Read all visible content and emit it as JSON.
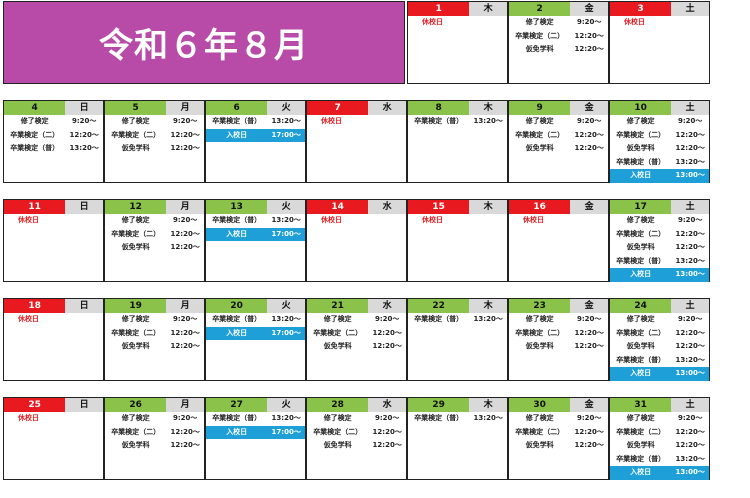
{
  "title": "令和６年８月",
  "colors": {
    "title_bg": "#b84aa8",
    "date_bg": "#8bc34a",
    "holiday_bg": "#e8191f",
    "weekday_bg": "#d9d9d9",
    "highlight_bg": "#1e9fd8"
  },
  "holiday_label": "休校日",
  "weekdays": [
    "日",
    "月",
    "火",
    "水",
    "木",
    "金",
    "土"
  ],
  "events": {
    "shuryo": "修了検定",
    "sotsu2": "卒業検定（二）",
    "karimen": "仮免学科",
    "sotsufu": "卒業検定（普）",
    "nyuko": "入校日",
    "t920": "9:20〜",
    "t1220": "12:20〜",
    "t1320": "13:20〜",
    "t1700": "17:00〜",
    "t1300": "13:00〜"
  },
  "days": [
    {
      "date": "1",
      "dow": "木",
      "holiday": true,
      "events": []
    },
    {
      "date": "2",
      "dow": "金",
      "holiday": false,
      "events": [
        [
          "shuryo",
          "t920"
        ],
        [
          "sotsu2",
          "t1220"
        ],
        [
          "karimen",
          "t1220"
        ]
      ]
    },
    {
      "date": "3",
      "dow": "土",
      "holiday": true,
      "events": []
    },
    {
      "date": "4",
      "dow": "日",
      "holiday": false,
      "events": [
        [
          "shuryo",
          "t920"
        ],
        [
          "sotsu2",
          "t1220"
        ],
        [
          "sotsufu",
          "t1320"
        ]
      ]
    },
    {
      "date": "5",
      "dow": "月",
      "holiday": false,
      "events": [
        [
          "shuryo",
          "t920"
        ],
        [
          "sotsu2",
          "t1220"
        ],
        [
          "karimen",
          "t1220"
        ]
      ]
    },
    {
      "date": "6",
      "dow": "火",
      "holiday": false,
      "events": [
        [
          "sotsufu",
          "t1320"
        ],
        [
          "nyuko",
          "t1700",
          true
        ]
      ]
    },
    {
      "date": "7",
      "dow": "水",
      "holiday": true,
      "events": []
    },
    {
      "date": "8",
      "dow": "木",
      "holiday": false,
      "events": [
        [
          "sotsufu",
          "t1320"
        ]
      ]
    },
    {
      "date": "9",
      "dow": "金",
      "holiday": false,
      "events": [
        [
          "shuryo",
          "t920"
        ],
        [
          "sotsu2",
          "t1220"
        ],
        [
          "karimen",
          "t1220"
        ]
      ]
    },
    {
      "date": "10",
      "dow": "土",
      "holiday": false,
      "events": [
        [
          "shuryo",
          "t920"
        ],
        [
          "sotsu2",
          "t1220"
        ],
        [
          "karimen",
          "t1220"
        ],
        [
          "sotsufu",
          "t1320"
        ],
        [
          "nyuko",
          "t1300",
          true
        ]
      ]
    },
    {
      "date": "11",
      "dow": "日",
      "holiday": true,
      "events": []
    },
    {
      "date": "12",
      "dow": "月",
      "holiday": false,
      "events": [
        [
          "shuryo",
          "t920"
        ],
        [
          "sotsu2",
          "t1220"
        ],
        [
          "karimen",
          "t1220"
        ]
      ]
    },
    {
      "date": "13",
      "dow": "火",
      "holiday": false,
      "events": [
        [
          "sotsufu",
          "t1320"
        ],
        [
          "nyuko",
          "t1700",
          true
        ]
      ]
    },
    {
      "date": "14",
      "dow": "水",
      "holiday": true,
      "events": []
    },
    {
      "date": "15",
      "dow": "木",
      "holiday": true,
      "events": []
    },
    {
      "date": "16",
      "dow": "金",
      "holiday": true,
      "events": []
    },
    {
      "date": "17",
      "dow": "土",
      "holiday": false,
      "events": [
        [
          "shuryo",
          "t920"
        ],
        [
          "sotsu2",
          "t1220"
        ],
        [
          "karimen",
          "t1220"
        ],
        [
          "sotsufu",
          "t1320"
        ],
        [
          "nyuko",
          "t1300",
          true
        ]
      ]
    },
    {
      "date": "18",
      "dow": "日",
      "holiday": true,
      "events": []
    },
    {
      "date": "19",
      "dow": "月",
      "holiday": false,
      "events": [
        [
          "shuryo",
          "t920"
        ],
        [
          "sotsu2",
          "t1220"
        ],
        [
          "karimen",
          "t1220"
        ]
      ]
    },
    {
      "date": "20",
      "dow": "火",
      "holiday": false,
      "events": [
        [
          "sotsufu",
          "t1320"
        ],
        [
          "nyuko",
          "t1700",
          true
        ]
      ]
    },
    {
      "date": "21",
      "dow": "水",
      "holiday": false,
      "events": [
        [
          "shuryo",
          "t920"
        ],
        [
          "sotsu2",
          "t1220"
        ],
        [
          "karimen",
          "t1220"
        ]
      ]
    },
    {
      "date": "22",
      "dow": "木",
      "holiday": false,
      "events": [
        [
          "sotsufu",
          "t1320"
        ]
      ]
    },
    {
      "date": "23",
      "dow": "金",
      "holiday": false,
      "events": [
        [
          "shuryo",
          "t920"
        ],
        [
          "sotsu2",
          "t1220"
        ],
        [
          "karimen",
          "t1220"
        ]
      ]
    },
    {
      "date": "24",
      "dow": "土",
      "holiday": false,
      "events": [
        [
          "shuryo",
          "t920"
        ],
        [
          "sotsu2",
          "t1220"
        ],
        [
          "karimen",
          "t1220"
        ],
        [
          "sotsufu",
          "t1320"
        ],
        [
          "nyuko",
          "t1300",
          true
        ]
      ]
    },
    {
      "date": "25",
      "dow": "日",
      "holiday": true,
      "events": []
    },
    {
      "date": "26",
      "dow": "月",
      "holiday": false,
      "events": [
        [
          "shuryo",
          "t920"
        ],
        [
          "sotsu2",
          "t1220"
        ],
        [
          "karimen",
          "t1220"
        ]
      ]
    },
    {
      "date": "27",
      "dow": "火",
      "holiday": false,
      "events": [
        [
          "sotsufu",
          "t1320"
        ],
        [
          "nyuko",
          "t1700",
          true
        ]
      ]
    },
    {
      "date": "28",
      "dow": "水",
      "holiday": false,
      "events": [
        [
          "shuryo",
          "t920"
        ],
        [
          "sotsu2",
          "t1220"
        ],
        [
          "karimen",
          "t1220"
        ]
      ]
    },
    {
      "date": "29",
      "dow": "木",
      "holiday": false,
      "events": [
        [
          "sotsufu",
          "t1320"
        ]
      ]
    },
    {
      "date": "30",
      "dow": "金",
      "holiday": false,
      "events": [
        [
          "shuryo",
          "t920"
        ],
        [
          "sotsu2",
          "t1220"
        ],
        [
          "karimen",
          "t1220"
        ]
      ]
    },
    {
      "date": "31",
      "dow": "土",
      "holiday": false,
      "events": [
        [
          "shuryo",
          "t920"
        ],
        [
          "sotsu2",
          "t1220"
        ],
        [
          "karimen",
          "t1220"
        ],
        [
          "sotsufu",
          "t1320"
        ],
        [
          "nyuko",
          "t1300",
          true
        ]
      ]
    }
  ]
}
